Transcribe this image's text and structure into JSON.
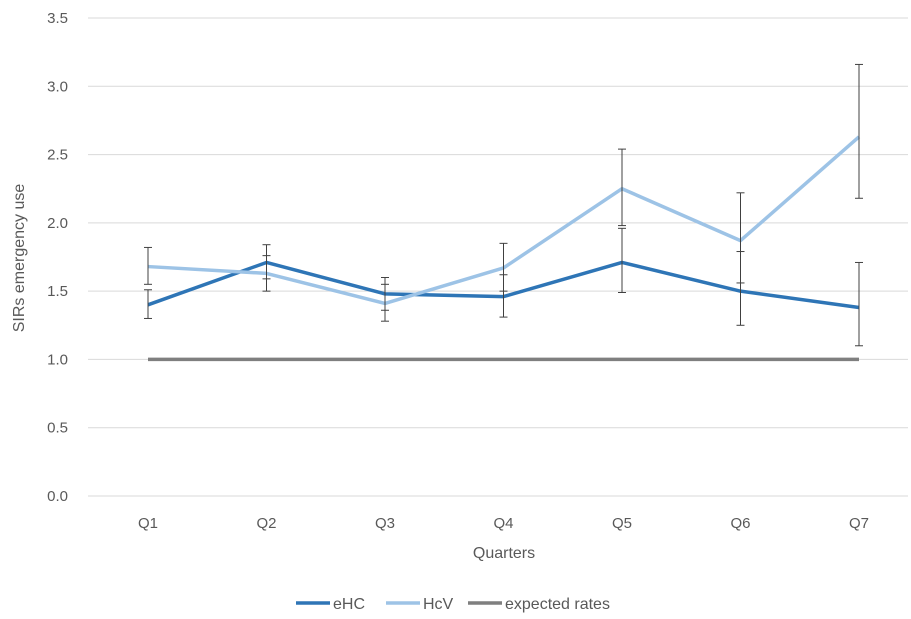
{
  "chart_data": {
    "type": "line",
    "title": "",
    "xlabel": "Quarters",
    "ylabel": "SIRs emergency use",
    "categories": [
      "Q1",
      "Q2",
      "Q3",
      "Q4",
      "Q5",
      "Q6",
      "Q7"
    ],
    "ylim": [
      0,
      3.5
    ],
    "yticks": [
      "0.0",
      "0.5",
      "1.0",
      "1.5",
      "2.0",
      "2.5",
      "3.0",
      "3.5"
    ],
    "grid": true,
    "legend": "bottom",
    "series": [
      {
        "name": "eHC",
        "color": "#2e75b6",
        "values": [
          1.4,
          1.71,
          1.48,
          1.46,
          1.71,
          1.5,
          1.38
        ],
        "error_low": [
          1.3,
          1.59,
          1.36,
          1.31,
          1.49,
          1.25,
          1.1
        ],
        "error_high": [
          1.51,
          1.84,
          1.6,
          1.62,
          1.96,
          1.79,
          1.71
        ]
      },
      {
        "name": "HcV",
        "color": "#9dc3e6",
        "values": [
          1.68,
          1.63,
          1.41,
          1.67,
          2.25,
          1.87,
          2.63
        ],
        "error_low": [
          1.55,
          1.5,
          1.28,
          1.5,
          1.98,
          1.56,
          2.18
        ],
        "error_high": [
          1.82,
          1.76,
          1.55,
          1.85,
          2.54,
          2.22,
          3.16
        ]
      },
      {
        "name": "expected rates",
        "color": "#7f7f7f",
        "values": [
          1.0,
          1.0,
          1.0,
          1.0,
          1.0,
          1.0,
          1.0
        ]
      }
    ]
  },
  "colors": {
    "grid": "#d9d9d9",
    "error_bar": "#404040",
    "text": "#595959"
  }
}
